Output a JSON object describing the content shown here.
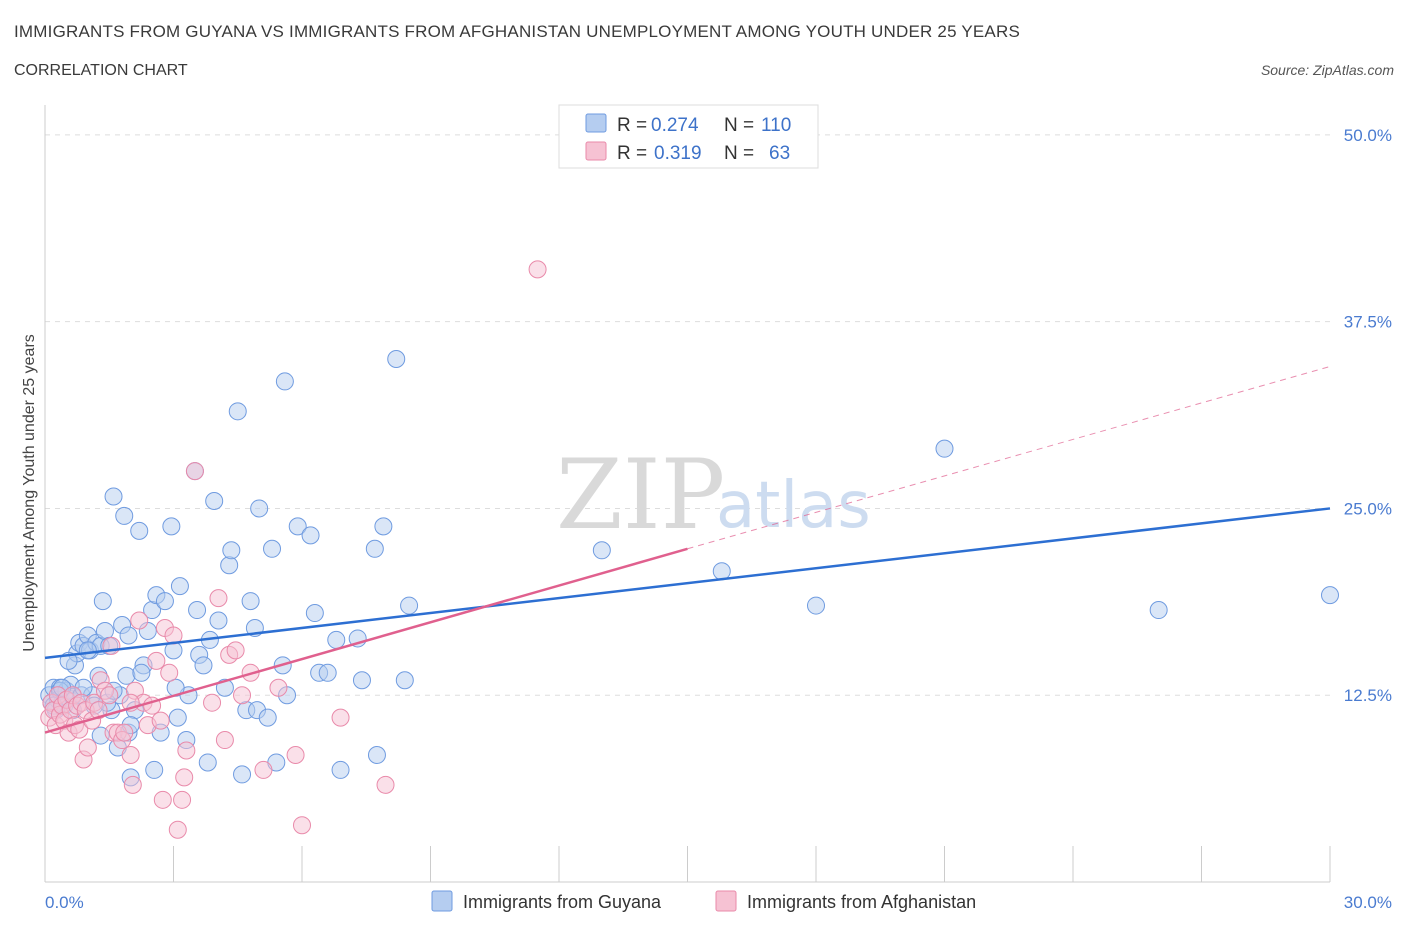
{
  "header": {
    "title": "IMMIGRANTS FROM GUYANA VS IMMIGRANTS FROM AFGHANISTAN UNEMPLOYMENT AMONG YOUTH UNDER 25 YEARS",
    "subtitle": "CORRELATION CHART",
    "source": "Source: ZipAtlas.com"
  },
  "colors": {
    "guyana_fill": "#b5cdf0",
    "guyana_stroke": "#6f9be0",
    "guyana_line": "#2d6fd2",
    "afghan_fill": "#f6c2d3",
    "afghan_stroke": "#e98aaa",
    "afghan_line": "#e0608e",
    "grid": "#dddddd",
    "tick_text": "#4a7bd0"
  },
  "legend": {
    "items": [
      {
        "r_label": "R =",
        "r_value": "0.274",
        "n_label": "N =",
        "n_value": "110"
      },
      {
        "r_label": "R =",
        "r_value": "0.319",
        "n_label": "N =",
        "n_value": "63"
      }
    ]
  },
  "watermark": {
    "zip": "ZIP",
    "atlas": "atlas"
  },
  "chart_data": {
    "type": "scatter",
    "title": "IMMIGRANTS FROM GUYANA VS IMMIGRANTS FROM AFGHANISTAN UNEMPLOYMENT AMONG YOUTH UNDER 25 YEARS",
    "subtitle": "CORRELATION CHART",
    "xlabel": "",
    "ylabel": "Unemployment Among Youth under 25 years",
    "xlim": [
      0,
      30
    ],
    "ylim": [
      0,
      52
    ],
    "x_tick_labels": [
      "0.0%",
      "30.0%"
    ],
    "y_ticks": [
      12.5,
      25.0,
      37.5,
      50.0
    ],
    "y_tick_labels": [
      "12.5%",
      "25.0%",
      "37.5%",
      "50.0%"
    ],
    "grid": true,
    "legend_position": "top-center",
    "series": [
      {
        "name": "Immigrants from Guyana",
        "color": "#6f9be0",
        "r": 0.274,
        "n": 110,
        "trend": {
          "x": [
            0,
            30
          ],
          "y": [
            15.0,
            25.0
          ],
          "style": "solid"
        },
        "points": [
          [
            0.1,
            12.5
          ],
          [
            0.15,
            12.0
          ],
          [
            0.2,
            13.0
          ],
          [
            0.25,
            11.5
          ],
          [
            0.3,
            12.2
          ],
          [
            0.35,
            13.0
          ],
          [
            0.4,
            12.0
          ],
          [
            0.45,
            11.8
          ],
          [
            0.5,
            12.8
          ],
          [
            0.55,
            12.3
          ],
          [
            0.6,
            13.2
          ],
          [
            0.65,
            12.4
          ],
          [
            0.7,
            14.5
          ],
          [
            0.75,
            15.3
          ],
          [
            0.8,
            16.0
          ],
          [
            0.85,
            12.5
          ],
          [
            0.9,
            15.8
          ],
          [
            1.0,
            16.5
          ],
          [
            1.05,
            15.5
          ],
          [
            1.1,
            12.5
          ],
          [
            1.2,
            16.0
          ],
          [
            1.25,
            13.8
          ],
          [
            1.3,
            15.8
          ],
          [
            1.35,
            18.8
          ],
          [
            1.4,
            16.8
          ],
          [
            1.5,
            15.8
          ],
          [
            1.55,
            11.5
          ],
          [
            1.6,
            25.8
          ],
          [
            1.7,
            9.0
          ],
          [
            1.75,
            12.5
          ],
          [
            1.8,
            17.2
          ],
          [
            1.85,
            24.5
          ],
          [
            1.9,
            13.8
          ],
          [
            1.95,
            10.0
          ],
          [
            2.0,
            7.0
          ],
          [
            2.1,
            11.5
          ],
          [
            2.2,
            23.5
          ],
          [
            2.3,
            14.5
          ],
          [
            2.4,
            16.8
          ],
          [
            2.5,
            18.2
          ],
          [
            2.55,
            7.5
          ],
          [
            2.6,
            19.2
          ],
          [
            2.7,
            10.0
          ],
          [
            2.8,
            18.8
          ],
          [
            2.95,
            23.8
          ],
          [
            3.0,
            15.5
          ],
          [
            3.1,
            11.0
          ],
          [
            3.15,
            19.8
          ],
          [
            3.3,
            9.5
          ],
          [
            3.35,
            12.5
          ],
          [
            3.5,
            27.5
          ],
          [
            3.55,
            18.2
          ],
          [
            3.6,
            15.2
          ],
          [
            3.8,
            8.0
          ],
          [
            3.85,
            16.2
          ],
          [
            3.95,
            25.5
          ],
          [
            4.05,
            17.5
          ],
          [
            4.2,
            13.0
          ],
          [
            4.3,
            21.2
          ],
          [
            4.35,
            22.2
          ],
          [
            4.5,
            31.5
          ],
          [
            4.6,
            7.2
          ],
          [
            4.7,
            11.5
          ],
          [
            4.8,
            18.8
          ],
          [
            4.9,
            17.0
          ],
          [
            4.95,
            11.5
          ],
          [
            5.0,
            25.0
          ],
          [
            5.2,
            11.0
          ],
          [
            5.3,
            22.3
          ],
          [
            5.4,
            8.0
          ],
          [
            5.55,
            14.5
          ],
          [
            5.6,
            33.5
          ],
          [
            5.65,
            12.5
          ],
          [
            5.9,
            23.8
          ],
          [
            6.2,
            23.2
          ],
          [
            6.3,
            18.0
          ],
          [
            6.4,
            14.0
          ],
          [
            6.6,
            14.0
          ],
          [
            6.8,
            16.2
          ],
          [
            6.9,
            7.5
          ],
          [
            7.3,
            16.3
          ],
          [
            7.4,
            13.5
          ],
          [
            7.7,
            22.3
          ],
          [
            7.9,
            23.8
          ],
          [
            8.2,
            35.0
          ],
          [
            8.4,
            13.5
          ],
          [
            8.5,
            18.5
          ],
          [
            7.75,
            8.5
          ],
          [
            13.0,
            22.2
          ],
          [
            15.8,
            20.8
          ],
          [
            18.0,
            18.5
          ],
          [
            21.0,
            29.0
          ],
          [
            26.0,
            18.2
          ],
          [
            30.0,
            19.2
          ],
          [
            0.55,
            14.8
          ],
          [
            0.9,
            13.0
          ],
          [
            1.15,
            11.8
          ],
          [
            1.45,
            12.0
          ],
          [
            0.35,
            12.8
          ],
          [
            0.65,
            11.5
          ],
          [
            1.3,
            9.8
          ],
          [
            2.25,
            14.0
          ],
          [
            3.05,
            13.0
          ],
          [
            3.7,
            14.5
          ],
          [
            1.95,
            16.5
          ],
          [
            1.0,
            15.5
          ],
          [
            0.2,
            11.8
          ],
          [
            0.4,
            13.0
          ],
          [
            2.0,
            10.5
          ],
          [
            1.6,
            12.8
          ]
        ]
      },
      {
        "name": "Immigrants from Afghanistan",
        "color": "#e98aaa",
        "r": 0.319,
        "n": 63,
        "trend": {
          "x": [
            0,
            15
          ],
          "y": [
            10.0,
            22.3
          ],
          "style": "solid",
          "extension": {
            "x": [
              15,
              30
            ],
            "y": [
              22.3,
              34.5
            ],
            "style": "dashed"
          }
        },
        "points": [
          [
            0.1,
            11.0
          ],
          [
            0.15,
            12.0
          ],
          [
            0.2,
            11.5
          ],
          [
            0.25,
            10.5
          ],
          [
            0.3,
            12.5
          ],
          [
            0.35,
            11.2
          ],
          [
            0.4,
            11.8
          ],
          [
            0.45,
            10.8
          ],
          [
            0.5,
            12.2
          ],
          [
            0.55,
            10.0
          ],
          [
            0.6,
            11.5
          ],
          [
            0.65,
            12.5
          ],
          [
            0.7,
            10.5
          ],
          [
            0.75,
            11.8
          ],
          [
            0.8,
            10.2
          ],
          [
            0.85,
            12.0
          ],
          [
            0.9,
            8.2
          ],
          [
            0.95,
            11.5
          ],
          [
            1.0,
            9.0
          ],
          [
            1.1,
            10.8
          ],
          [
            1.15,
            12.0
          ],
          [
            1.25,
            11.5
          ],
          [
            1.3,
            13.5
          ],
          [
            1.4,
            12.8
          ],
          [
            1.5,
            12.5
          ],
          [
            1.55,
            15.8
          ],
          [
            1.6,
            10.0
          ],
          [
            1.7,
            10.0
          ],
          [
            1.8,
            9.5
          ],
          [
            1.85,
            10.0
          ],
          [
            2.0,
            8.5
          ],
          [
            2.05,
            6.5
          ],
          [
            2.1,
            12.8
          ],
          [
            2.2,
            17.5
          ],
          [
            2.3,
            12.0
          ],
          [
            2.4,
            10.5
          ],
          [
            2.5,
            11.8
          ],
          [
            2.6,
            14.8
          ],
          [
            2.7,
            10.8
          ],
          [
            2.75,
            5.5
          ],
          [
            2.8,
            17.0
          ],
          [
            2.9,
            14.0
          ],
          [
            3.0,
            16.5
          ],
          [
            3.1,
            3.5
          ],
          [
            3.2,
            5.5
          ],
          [
            3.25,
            7.0
          ],
          [
            3.3,
            8.8
          ],
          [
            3.5,
            27.5
          ],
          [
            3.9,
            12.0
          ],
          [
            4.05,
            19.0
          ],
          [
            4.2,
            9.5
          ],
          [
            4.3,
            15.2
          ],
          [
            4.45,
            15.5
          ],
          [
            4.6,
            12.5
          ],
          [
            4.8,
            14.0
          ],
          [
            5.1,
            7.5
          ],
          [
            5.45,
            13.0
          ],
          [
            5.85,
            8.5
          ],
          [
            6.0,
            3.8
          ],
          [
            6.9,
            11.0
          ],
          [
            7.95,
            6.5
          ],
          [
            11.5,
            41.0
          ],
          [
            2.0,
            12.0
          ]
        ]
      }
    ]
  },
  "bottom_legend": {
    "items": [
      {
        "label": "Immigrants from Guyana"
      },
      {
        "label": "Immigrants from Afghanistan"
      }
    ]
  }
}
